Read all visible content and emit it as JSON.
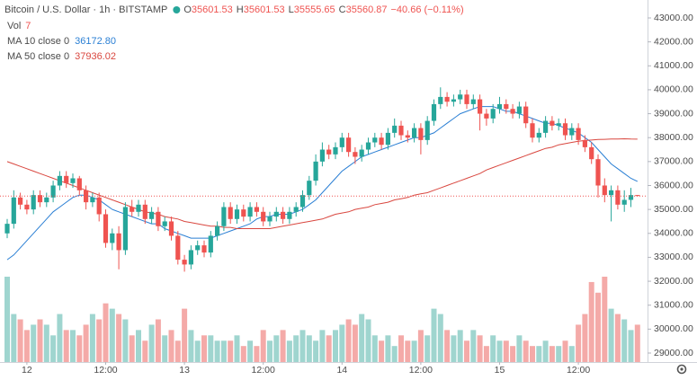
{
  "chart_data": {
    "type": "candlestick",
    "symbol": "Bitcoin / U.S. Dollar · 1h · BITSTAMP",
    "ohlc_prefixes": [
      "O",
      "H",
      "L",
      "C"
    ],
    "change": "−40.66 (−0.11%)",
    "up_color": "#26a69a",
    "down_color": "#ef5350",
    "categories": [
      null,
      null,
      null,
      null,
      null,
      null,
      null,
      null,
      null,
      null,
      null,
      null,
      null,
      null,
      null,
      null,
      null,
      null,
      null,
      null,
      null,
      null,
      null,
      null,
      null,
      null,
      null,
      null,
      null,
      null,
      null,
      null,
      null,
      null,
      null,
      null,
      null,
      null,
      null,
      null,
      null,
      null,
      null,
      null,
      null,
      null,
      null,
      null,
      null,
      null,
      null,
      null,
      null,
      null,
      null,
      null,
      null,
      null,
      null,
      null,
      null,
      null,
      null,
      null,
      null,
      null,
      null,
      null,
      null,
      null,
      null,
      null,
      null,
      null,
      null,
      null,
      null,
      null,
      null,
      null,
      null,
      null,
      null,
      null,
      null,
      null,
      null,
      null,
      null,
      null,
      null,
      null,
      null,
      null,
      null,
      null,
      null
    ],
    "open": [
      34000,
      34400,
      35500,
      35200,
      35000,
      35600,
      35300,
      35500,
      36000,
      36400,
      36100,
      36300,
      35800,
      35300,
      35500,
      34800,
      33600,
      34000,
      33300,
      35100,
      34900,
      35200,
      34600,
      34900,
      34300,
      34500,
      33900,
      32900,
      32700,
      33300,
      33500,
      33200,
      33900,
      34300,
      35100,
      34600,
      35000,
      34700,
      35100,
      34900,
      34500,
      34700,
      34900,
      34600,
      34900,
      35100,
      35600,
      36200,
      37000,
      37500,
      37300,
      37600,
      38000,
      37400,
      37200,
      37500,
      37800,
      38000,
      37700,
      38200,
      38500,
      38100,
      38000,
      38400,
      37900,
      38700,
      39400,
      39700,
      39500,
      39600,
      39800,
      39400,
      39600,
      39000,
      38800,
      39200,
      39400,
      39200,
      39000,
      39300,
      38600,
      38000,
      38200,
      38700,
      38500,
      38600,
      38100,
      38400,
      37900,
      37600,
      37100,
      36000,
      35600,
      35800,
      35200,
      35400,
      35601.53
    ],
    "high": [
      34600,
      35800,
      35700,
      35400,
      35800,
      35800,
      35700,
      36200,
      36600,
      36600,
      36500,
      36400,
      36000,
      35700,
      35700,
      35000,
      34200,
      34300,
      35300,
      35400,
      35400,
      35400,
      35100,
      35100,
      34700,
      34700,
      34100,
      33100,
      33500,
      33700,
      33700,
      34100,
      34500,
      35300,
      35300,
      35200,
      35200,
      35300,
      35300,
      35100,
      34900,
      35100,
      35100,
      35100,
      35300,
      35800,
      36400,
      37300,
      37800,
      37700,
      37800,
      38200,
      38200,
      37600,
      37700,
      38000,
      38200,
      38200,
      38400,
      38800,
      38700,
      38300,
      38600,
      38600,
      38900,
      39600,
      40100,
      39900,
      39800,
      40000,
      40000,
      39800,
      39800,
      39200,
      39400,
      39700,
      39600,
      39400,
      39500,
      39500,
      38800,
      38400,
      38900,
      38900,
      38800,
      38800,
      38600,
      38600,
      38100,
      37800,
      37300,
      36300,
      36000,
      36000,
      35800,
      35900,
      35601.53
    ],
    "low": [
      33800,
      34200,
      35000,
      34800,
      34800,
      35100,
      35100,
      35300,
      35800,
      35900,
      35900,
      35600,
      35000,
      35100,
      34500,
      33400,
      33300,
      32500,
      33100,
      34700,
      34700,
      34400,
      34400,
      34100,
      34100,
      33700,
      32700,
      32400,
      32500,
      33100,
      33000,
      33000,
      33700,
      34100,
      34400,
      34400,
      34500,
      34500,
      34700,
      34300,
      34300,
      34500,
      34400,
      34400,
      34700,
      34900,
      35400,
      36000,
      36800,
      37100,
      37100,
      37400,
      37200,
      36900,
      37000,
      37300,
      37600,
      37500,
      37500,
      38000,
      37900,
      37800,
      37800,
      37300,
      37700,
      38500,
      39200,
      39300,
      39300,
      39400,
      39200,
      39200,
      38300,
      38500,
      38600,
      39000,
      39000,
      38800,
      38800,
      38400,
      37800,
      37800,
      38000,
      38300,
      38300,
      37900,
      37900,
      37700,
      37400,
      36900,
      35500,
      35300,
      34500,
      35000,
      34900,
      35100,
      35555.65
    ],
    "close": [
      34400,
      35500,
      35200,
      35000,
      35600,
      35300,
      35500,
      36000,
      36400,
      36100,
      36300,
      35800,
      35300,
      35500,
      34800,
      33600,
      34000,
      33300,
      35100,
      34900,
      35200,
      34600,
      34900,
      34300,
      34500,
      33900,
      32900,
      32700,
      33300,
      33500,
      33200,
      33900,
      34300,
      35100,
      34600,
      35000,
      34700,
      35100,
      34900,
      34500,
      34700,
      34900,
      34600,
      34900,
      35100,
      35600,
      36200,
      37000,
      37500,
      37300,
      37600,
      38000,
      37400,
      37200,
      37500,
      37800,
      38000,
      37700,
      38200,
      38500,
      38100,
      38000,
      38400,
      37900,
      38700,
      39400,
      39700,
      39500,
      39600,
      39800,
      39400,
      39600,
      39000,
      38800,
      39200,
      39400,
      39200,
      39000,
      39300,
      38600,
      38000,
      38200,
      38700,
      38500,
      38600,
      38100,
      38400,
      37900,
      37600,
      37100,
      36000,
      35600,
      35800,
      35200,
      35400,
      35600,
      35560.87
    ],
    "volume": {
      "name": "Vol",
      "up_color": "#9fd5cf",
      "down_color": "#f4aaa8",
      "values": [
        16,
        9,
        8,
        6,
        7,
        8,
        7,
        5,
        9,
        6,
        6,
        5,
        7,
        9,
        8,
        11,
        10,
        9,
        8,
        5,
        6,
        4,
        7,
        8,
        5,
        6,
        4,
        10,
        6,
        4,
        5,
        5,
        4,
        4,
        4,
        5,
        3,
        4,
        3,
        6,
        4,
        5,
        6,
        4,
        5,
        6,
        5,
        4,
        6,
        5,
        6,
        7,
        8,
        7,
        9,
        8,
        5,
        4,
        5,
        3,
        5,
        4,
        4,
        6,
        5,
        10,
        9,
        6,
        5,
        6,
        4,
        6,
        5,
        3,
        5,
        4,
        4,
        3,
        5,
        4,
        3,
        3,
        4,
        3,
        3,
        4,
        3,
        7,
        9,
        15,
        13,
        16,
        10,
        9,
        8,
        6,
        7
      ]
    },
    "overlays": [
      {
        "name": "MA 10 close 0",
        "color": "#2a7fd4",
        "value_label": "36172.80",
        "values": [
          32900,
          33100,
          33400,
          33700,
          34000,
          34300,
          34600,
          34900,
          35100,
          35300,
          35500,
          35600,
          35600,
          35500,
          35400,
          35200,
          35000,
          34900,
          34800,
          34700,
          34600,
          34500,
          34400,
          34400,
          34200,
          34100,
          34000,
          33900,
          33800,
          33800,
          33800,
          33800,
          33900,
          34000,
          34100,
          34200,
          34300,
          34400,
          34600,
          34700,
          34700,
          34800,
          34800,
          34800,
          34900,
          35000,
          35200,
          35400,
          35700,
          36000,
          36300,
          36600,
          36800,
          37000,
          37200,
          37300,
          37400,
          37500,
          37600,
          37700,
          37800,
          37900,
          38000,
          38000,
          38100,
          38200,
          38400,
          38600,
          38800,
          39000,
          39100,
          39200,
          39300,
          39300,
          39300,
          39200,
          39100,
          39100,
          39000,
          38900,
          38800,
          38700,
          38600,
          38600,
          38500,
          38400,
          38300,
          38200,
          38000,
          37800,
          37500,
          37200,
          36900,
          36700,
          36500,
          36300,
          36172.8
        ]
      },
      {
        "name": "MA 50 close 0",
        "color": "#d9473f",
        "value_label": "37936.02",
        "values": [
          37000,
          36900,
          36800,
          36700,
          36600,
          36500,
          36400,
          36300,
          36200,
          36100,
          36000,
          35900,
          35800,
          35700,
          35600,
          35500,
          35400,
          35300,
          35200,
          35100,
          35000,
          34900,
          34850,
          34800,
          34700,
          34650,
          34600,
          34500,
          34450,
          34400,
          34350,
          34300,
          34300,
          34250,
          34250,
          34200,
          34200,
          34200,
          34200,
          34200,
          34200,
          34250,
          34300,
          34350,
          34400,
          34450,
          34500,
          34550,
          34600,
          34700,
          34800,
          34850,
          34900,
          35000,
          35050,
          35100,
          35200,
          35250,
          35300,
          35400,
          35450,
          35500,
          35600,
          35650,
          35700,
          35800,
          35900,
          36000,
          36100,
          36200,
          36300,
          36400,
          36500,
          36650,
          36750,
          36850,
          36950,
          37050,
          37150,
          37250,
          37350,
          37450,
          37550,
          37600,
          37700,
          37750,
          37800,
          37850,
          37880,
          37900,
          37920,
          37930,
          37940,
          37940,
          37950,
          37940,
          37936.02
        ]
      }
    ],
    "ylim": [
      28625,
      43750
    ],
    "yticks": [
      {
        "value": 29000,
        "label": "29000.00"
      },
      {
        "value": 30000,
        "label": "30000.00"
      },
      {
        "value": 31000,
        "label": "31000.00"
      },
      {
        "value": 32000,
        "label": "32000.00"
      },
      {
        "value": 33000,
        "label": "33000.00"
      },
      {
        "value": 34000,
        "label": "34000.00"
      },
      {
        "value": 35000,
        "label": "35000.00"
      },
      {
        "value": 36000,
        "label": "36000.00"
      },
      {
        "value": 37000,
        "label": "37000.00"
      },
      {
        "value": 38000,
        "label": "38000.00"
      },
      {
        "value": 39000,
        "label": "39000.00"
      },
      {
        "value": 40000,
        "label": "40000.00"
      },
      {
        "value": 41000,
        "label": "41000.00"
      },
      {
        "value": 42000,
        "label": "42000.00"
      },
      {
        "value": 43000,
        "label": "43000.00"
      }
    ],
    "xticks": [
      {
        "value": 3,
        "label": "12"
      },
      {
        "value": 15,
        "label": "12:00"
      },
      {
        "value": 27,
        "label": "13"
      },
      {
        "value": 39,
        "label": "12:00"
      },
      {
        "value": 51,
        "label": "14"
      },
      {
        "value": 63,
        "label": "12:00"
      },
      {
        "value": 75,
        "label": "15"
      },
      {
        "value": 87,
        "label": "12:00"
      }
    ],
    "grid": false
  }
}
